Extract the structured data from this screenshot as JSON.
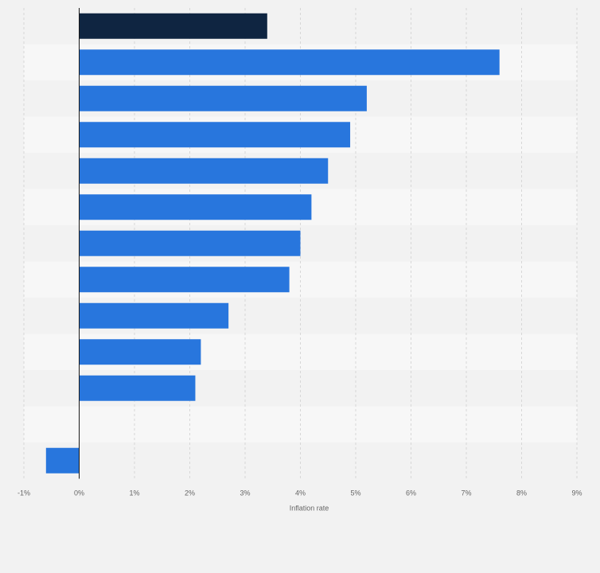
{
  "chart_data": {
    "type": "bar",
    "orientation": "horizontal",
    "title": "",
    "xlabel": "Inflation rate",
    "ylabel": "",
    "xlim": [
      -1,
      9
    ],
    "x_ticks": [
      -1,
      0,
      1,
      2,
      3,
      4,
      5,
      6,
      7,
      8,
      9
    ],
    "x_tick_labels": [
      "-1%",
      "0%",
      "1%",
      "2%",
      "3%",
      "4%",
      "5%",
      "6%",
      "7%",
      "8%",
      "9%"
    ],
    "categories": [
      "",
      "",
      "",
      "",
      "",
      "",
      "",
      "",
      "",
      "",
      "",
      "",
      ""
    ],
    "values": [
      3.4,
      7.6,
      5.2,
      4.9,
      4.5,
      4.2,
      4.0,
      3.8,
      2.7,
      2.2,
      2.1,
      0.0,
      -0.6
    ],
    "highlight_index": 0,
    "grid": true,
    "legend": "none",
    "colors": {
      "bar": "#2876dd",
      "highlight": "#0f2541",
      "zero_line": "#1a1a1a",
      "grid": "#d7d7d7",
      "band_light": "#f7f7f7",
      "band_dark": "#f2f2f2",
      "text": "#666666"
    }
  }
}
